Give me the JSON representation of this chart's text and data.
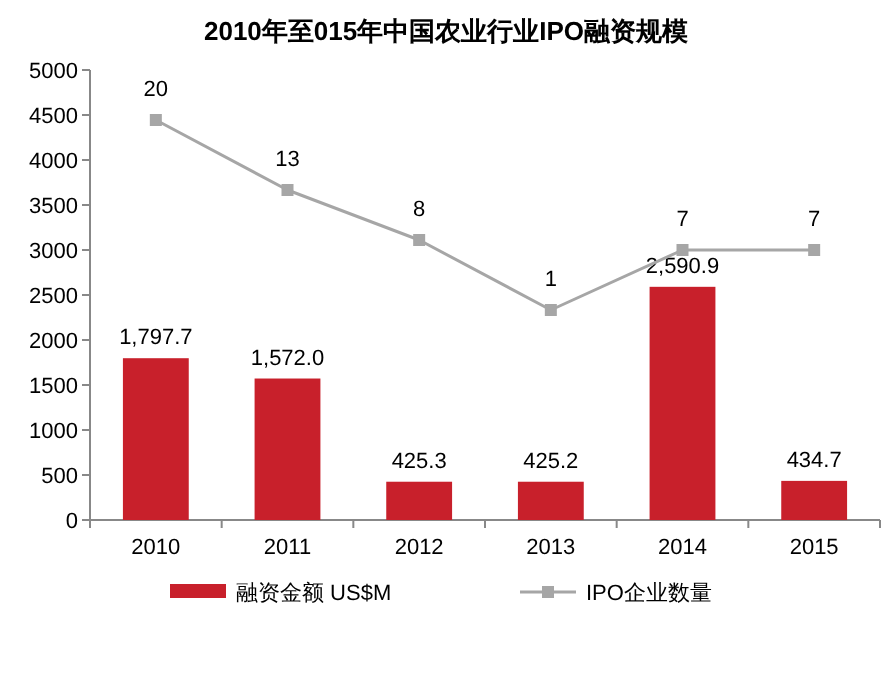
{
  "chart_data": {
    "type": "bar",
    "title": "2010年至015年中国农业行业IPO融资规模",
    "categories": [
      "2010",
      "2011",
      "2012",
      "2013",
      "2014",
      "2015"
    ],
    "series": [
      {
        "name": "融资金额 US$M",
        "color": "#c8202b",
        "values": [
          1797.7,
          1572.0,
          425.3,
          425.2,
          2590.9,
          434.7
        ],
        "value_labels": [
          "1,797.7",
          "1,572.0",
          "425.3",
          "425.2",
          "2,590.9",
          "434.7"
        ]
      },
      {
        "name": "IPO企业数量",
        "type": "line",
        "axis": "y2",
        "color": "#a6a6a6",
        "marker": "square",
        "values": [
          20,
          13,
          8,
          1,
          7,
          7
        ],
        "value_labels": [
          "20",
          "13",
          "8",
          "1",
          "7",
          "7"
        ]
      }
    ],
    "ylim": [
      0,
      5000
    ],
    "yticks": [
      0,
      500,
      1000,
      1500,
      2000,
      2500,
      3000,
      3500,
      4000,
      4500,
      5000
    ],
    "y2lim": [
      -20,
      25
    ],
    "legend": "bottom",
    "grid": false
  }
}
